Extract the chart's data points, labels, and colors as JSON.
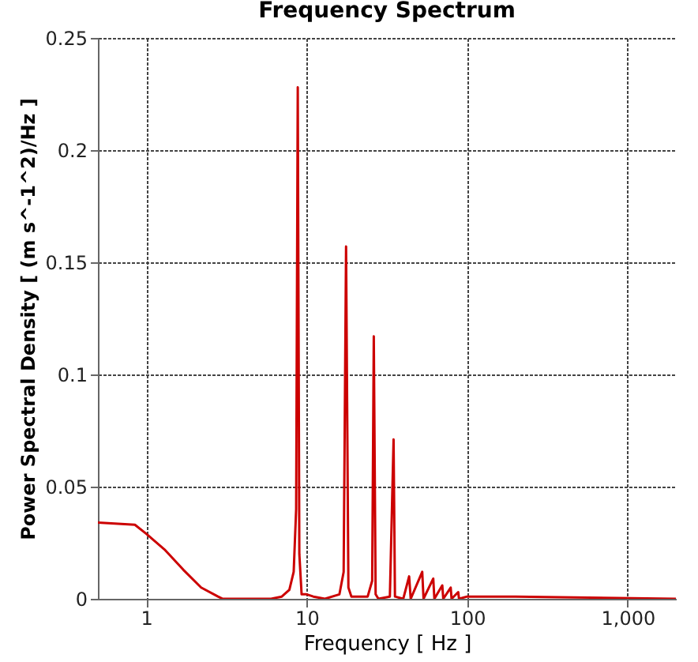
{
  "chart_data": {
    "type": "line",
    "title": "Frequency Spectrum",
    "xlabel": "Frequency [ Hz ]",
    "ylabel": "Power Spectral Density [ (m s^-1^2)/Hz ]",
    "log": "x",
    "xlim": [
      0.5,
      2000
    ],
    "xticks": [
      1,
      10,
      100,
      {
        "value": 1000,
        "label": "1,000"
      }
    ],
    "ylim": [
      0,
      0.25
    ],
    "yticks": [
      0,
      0.05,
      0.1,
      0.15,
      0.2,
      0.25
    ],
    "grid": true,
    "marker": "none",
    "line_style": "solid",
    "series": [
      {
        "color": "#cc0000",
        "x": [
          0.5,
          0.85,
          1.0,
          1.3,
          1.7,
          2.2,
          2.8,
          3,
          6,
          7,
          7.8,
          8.3,
          8.6,
          8.8,
          9.0,
          9.3,
          10,
          11,
          13,
          16,
          17,
          17.6,
          18.2,
          19,
          24,
          25.6,
          26.2,
          26.9,
          28,
          33,
          34.8,
          35.5,
          40,
          43.5,
          44.5,
          52.5,
          53.5,
          61.5,
          62.5,
          70,
          71,
          79,
          80,
          88,
          89,
          100,
          200,
          2000
        ],
        "values": [
          0.034,
          0.033,
          0.029,
          0.022,
          0.013,
          0.005,
          0.001,
          0,
          0,
          0.001,
          0.004,
          0.012,
          0.04,
          0.228,
          0.02,
          0.002,
          0.002,
          0.001,
          0,
          0.002,
          0.012,
          0.157,
          0.005,
          0.001,
          0.001,
          0.008,
          0.117,
          0.002,
          0,
          0.001,
          0.071,
          0.001,
          0,
          0.01,
          0,
          0.012,
          0,
          0.009,
          0,
          0.006,
          0,
          0.005,
          0,
          0.003,
          0,
          0.001,
          0.001,
          0
        ]
      }
    ]
  }
}
